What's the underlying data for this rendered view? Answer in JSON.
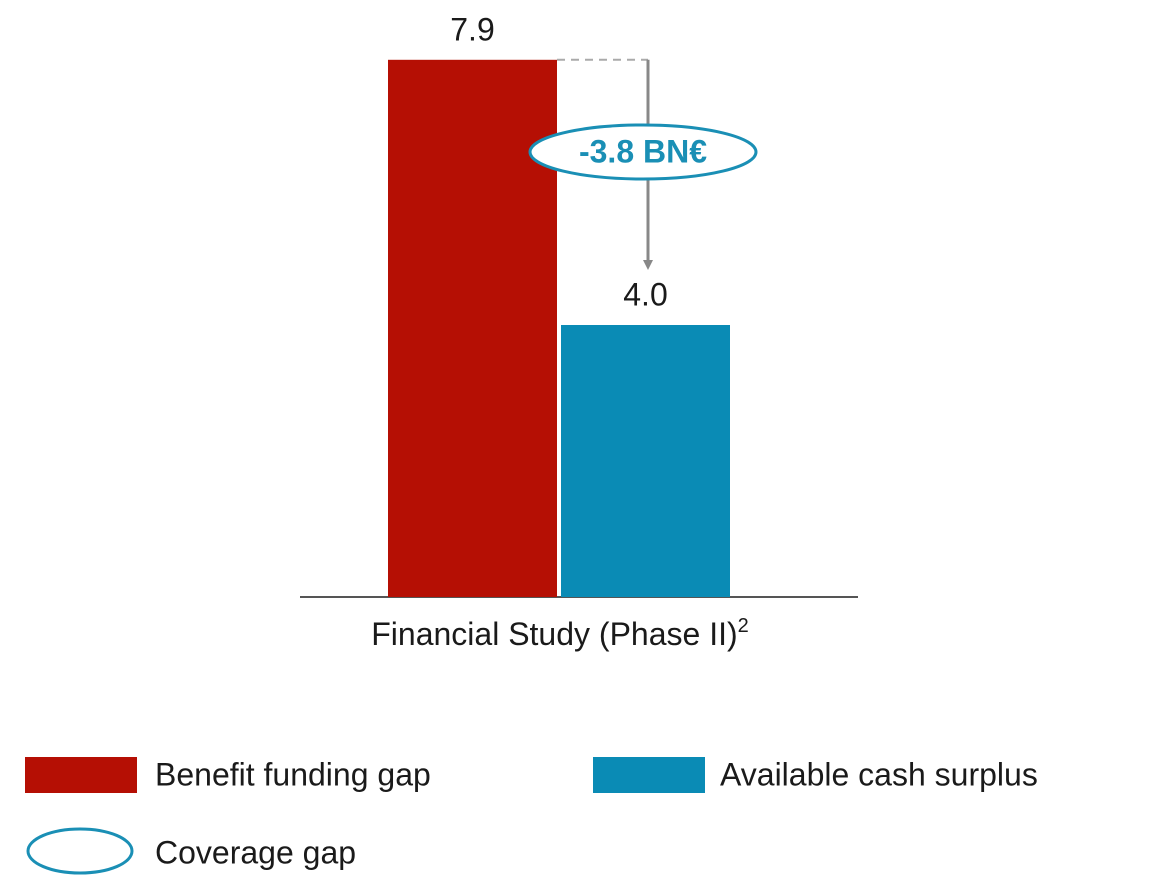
{
  "chart_data": {
    "type": "bar",
    "categories": [
      "Financial Study (Phase II)"
    ],
    "category_footnote": "2",
    "series": [
      {
        "name": "Benefit funding gap",
        "color": "#b50f04",
        "values": [
          7.9
        ]
      },
      {
        "name": "Available cash surplus",
        "color": "#0a8bb5",
        "values": [
          4.0
        ],
        "value_labels": [
          "4.0"
        ]
      }
    ],
    "ylim": [
      0,
      8
    ],
    "annotation": {
      "text": "-3.8 BN€",
      "legend": "Coverage gap",
      "color": "#1a8fb5"
    }
  }
}
